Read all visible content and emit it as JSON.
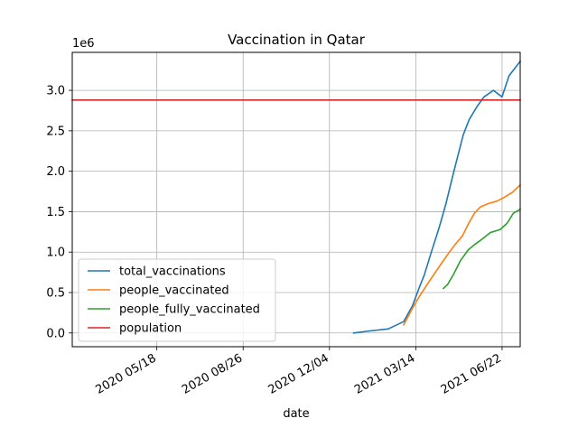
{
  "chart_data": {
    "type": "line",
    "title": "Vaccination in Qatar",
    "xlabel": "date",
    "ylabel": "",
    "y_offset_label": "1e6",
    "x_range": [
      "2020-02-10",
      "2021-07-13"
    ],
    "x_ticks": [
      {
        "date": "2020-05-18",
        "label": "2020 05/18"
      },
      {
        "date": "2020-08-26",
        "label": "2020 08/26"
      },
      {
        "date": "2020-12-04",
        "label": "2020 12/04"
      },
      {
        "date": "2021-03-14",
        "label": "2021 03/14"
      },
      {
        "date": "2021-06-22",
        "label": "2021 06/22"
      }
    ],
    "y_ticks": [
      {
        "value": 0,
        "label": "0.0"
      },
      {
        "value": 500000,
        "label": "0.5"
      },
      {
        "value": 1000000,
        "label": "1.0"
      },
      {
        "value": 1500000,
        "label": "1.5"
      },
      {
        "value": 2000000,
        "label": "2.0"
      },
      {
        "value": 2500000,
        "label": "2.5"
      },
      {
        "value": 3000000,
        "label": "3.0"
      }
    ],
    "ylim": [
      -170000,
      3470000
    ],
    "grid": true,
    "legend_position": "lower-left",
    "series": [
      {
        "name": "total_vaccinations",
        "color": "#1f77b4",
        "points": [
          [
            "2021-01-01",
            0
          ],
          [
            "2021-01-20",
            25000
          ],
          [
            "2021-02-10",
            50000
          ],
          [
            "2021-02-28",
            140000
          ],
          [
            "2021-03-10",
            330000
          ],
          [
            "2021-03-18",
            560000
          ],
          [
            "2021-03-24",
            720000
          ],
          [
            "2021-04-01",
            1000000
          ],
          [
            "2021-04-10",
            1300000
          ],
          [
            "2021-04-18",
            1600000
          ],
          [
            "2021-04-26",
            1950000
          ],
          [
            "2021-05-02",
            2200000
          ],
          [
            "2021-05-08",
            2450000
          ],
          [
            "2021-05-15",
            2640000
          ],
          [
            "2021-05-24",
            2800000
          ],
          [
            "2021-06-01",
            2920000
          ],
          [
            "2021-06-12",
            3000000
          ],
          [
            "2021-06-22",
            2920000
          ],
          [
            "2021-06-30",
            3180000
          ],
          [
            "2021-07-13",
            3360000
          ]
        ]
      },
      {
        "name": "people_vaccinated",
        "color": "#ff7f0e",
        "points": [
          [
            "2021-02-28",
            100000
          ],
          [
            "2021-03-10",
            300000
          ],
          [
            "2021-03-18",
            450000
          ],
          [
            "2021-03-31",
            660000
          ],
          [
            "2021-04-14",
            880000
          ],
          [
            "2021-04-22",
            1000000
          ],
          [
            "2021-04-29",
            1100000
          ],
          [
            "2021-05-07",
            1200000
          ],
          [
            "2021-05-14",
            1350000
          ],
          [
            "2021-05-21",
            1480000
          ],
          [
            "2021-05-28",
            1560000
          ],
          [
            "2021-06-06",
            1600000
          ],
          [
            "2021-06-16",
            1630000
          ],
          [
            "2021-06-25",
            1680000
          ],
          [
            "2021-07-04",
            1740000
          ],
          [
            "2021-07-13",
            1830000
          ]
        ]
      },
      {
        "name": "people_fully_vaccinated",
        "color": "#2ca02c",
        "points": [
          [
            "2021-04-15",
            550000
          ],
          [
            "2021-04-20",
            600000
          ],
          [
            "2021-04-27",
            730000
          ],
          [
            "2021-05-05",
            900000
          ],
          [
            "2021-05-14",
            1030000
          ],
          [
            "2021-05-22",
            1100000
          ],
          [
            "2021-05-31",
            1170000
          ],
          [
            "2021-06-08",
            1240000
          ],
          [
            "2021-06-20",
            1280000
          ],
          [
            "2021-06-28",
            1360000
          ],
          [
            "2021-07-05",
            1480000
          ],
          [
            "2021-07-13",
            1530000
          ]
        ]
      },
      {
        "name": "population",
        "color": "#d62728",
        "points": [
          [
            "2020-02-10",
            2880000
          ],
          [
            "2021-07-13",
            2880000
          ]
        ]
      }
    ]
  }
}
